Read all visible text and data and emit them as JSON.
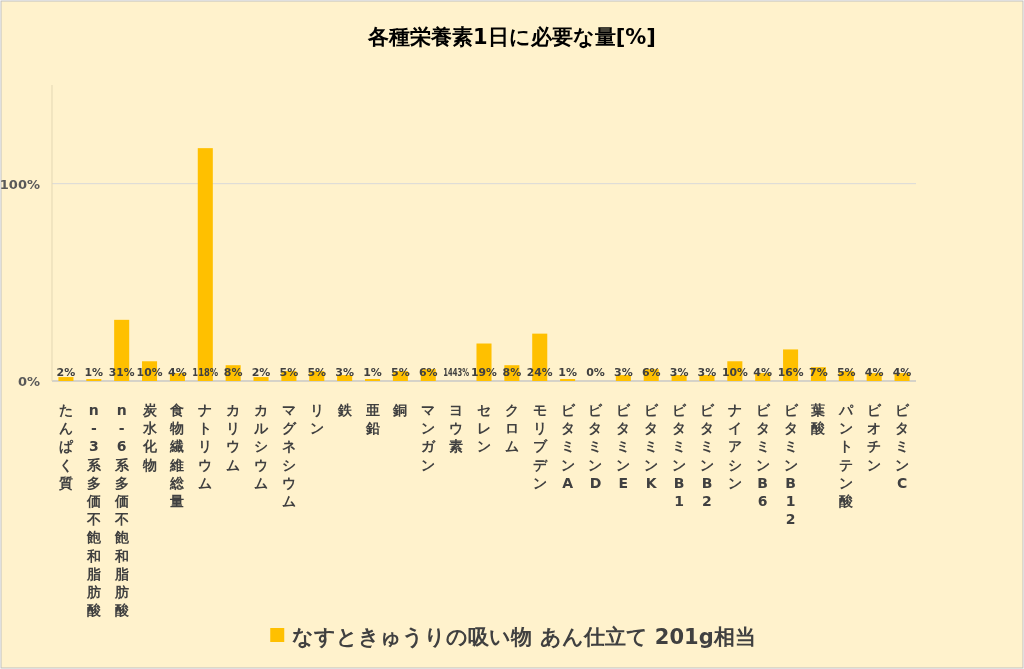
{
  "chart_data": {
    "type": "bar",
    "title": "各種栄養素1日に必要な量[%]",
    "categories": [
      "たんぱく質",
      "n-3系多価不飽和脂肪酸",
      "n-6系多価不飽和脂肪酸",
      "炭水化物",
      "食物繊維総量",
      "ナトリウム",
      "カリウム",
      "カルシウム",
      "マグネシウム",
      "リン",
      "鉄",
      "亜鉛",
      "銅",
      "マンガン",
      "ヨウ素",
      "セレン",
      "クロム",
      "モリブデン",
      "ビタミンA",
      "ビタミンD",
      "ビタミンE",
      "ビタミンK",
      "ビタミンB1",
      "ビタミンB2",
      "ナイアシン",
      "ビタミンB6",
      "ビタミンB12",
      "葉酸",
      "パントテン酸",
      "ビオチン",
      "ビタミンC"
    ],
    "series": [
      {
        "name": "なすときゅうりの吸い物 あん仕立て 201g相当",
        "color": "#ffc000",
        "values": [
          2,
          1,
          31,
          10,
          4,
          118,
          8,
          2,
          5,
          5,
          3,
          1,
          5,
          6,
          null,
          19,
          8,
          24,
          1,
          0,
          3,
          6,
          3,
          3,
          10,
          4,
          16,
          7,
          5,
          4,
          4
        ]
      }
    ],
    "ylim": [
      0,
      150
    ],
    "yticks": [
      {
        "value": 0,
        "label": "0%"
      },
      {
        "value": 100,
        "label": "100%"
      }
    ],
    "value_labels": [
      "2%",
      "1%",
      "31%",
      "10%",
      "4%",
      "118%",
      "8%",
      "2%",
      "5%",
      "5%",
      "3%",
      "1%",
      "5%",
      "6%",
      "1443%",
      "19%",
      "8%",
      "24%",
      "1%",
      "0%",
      "3%",
      "6%",
      "3%",
      "3%",
      "10%",
      "4%",
      "16%",
      "7%",
      "5%",
      "4%",
      "4%"
    ],
    "grid": "y",
    "legend": "bottom"
  }
}
